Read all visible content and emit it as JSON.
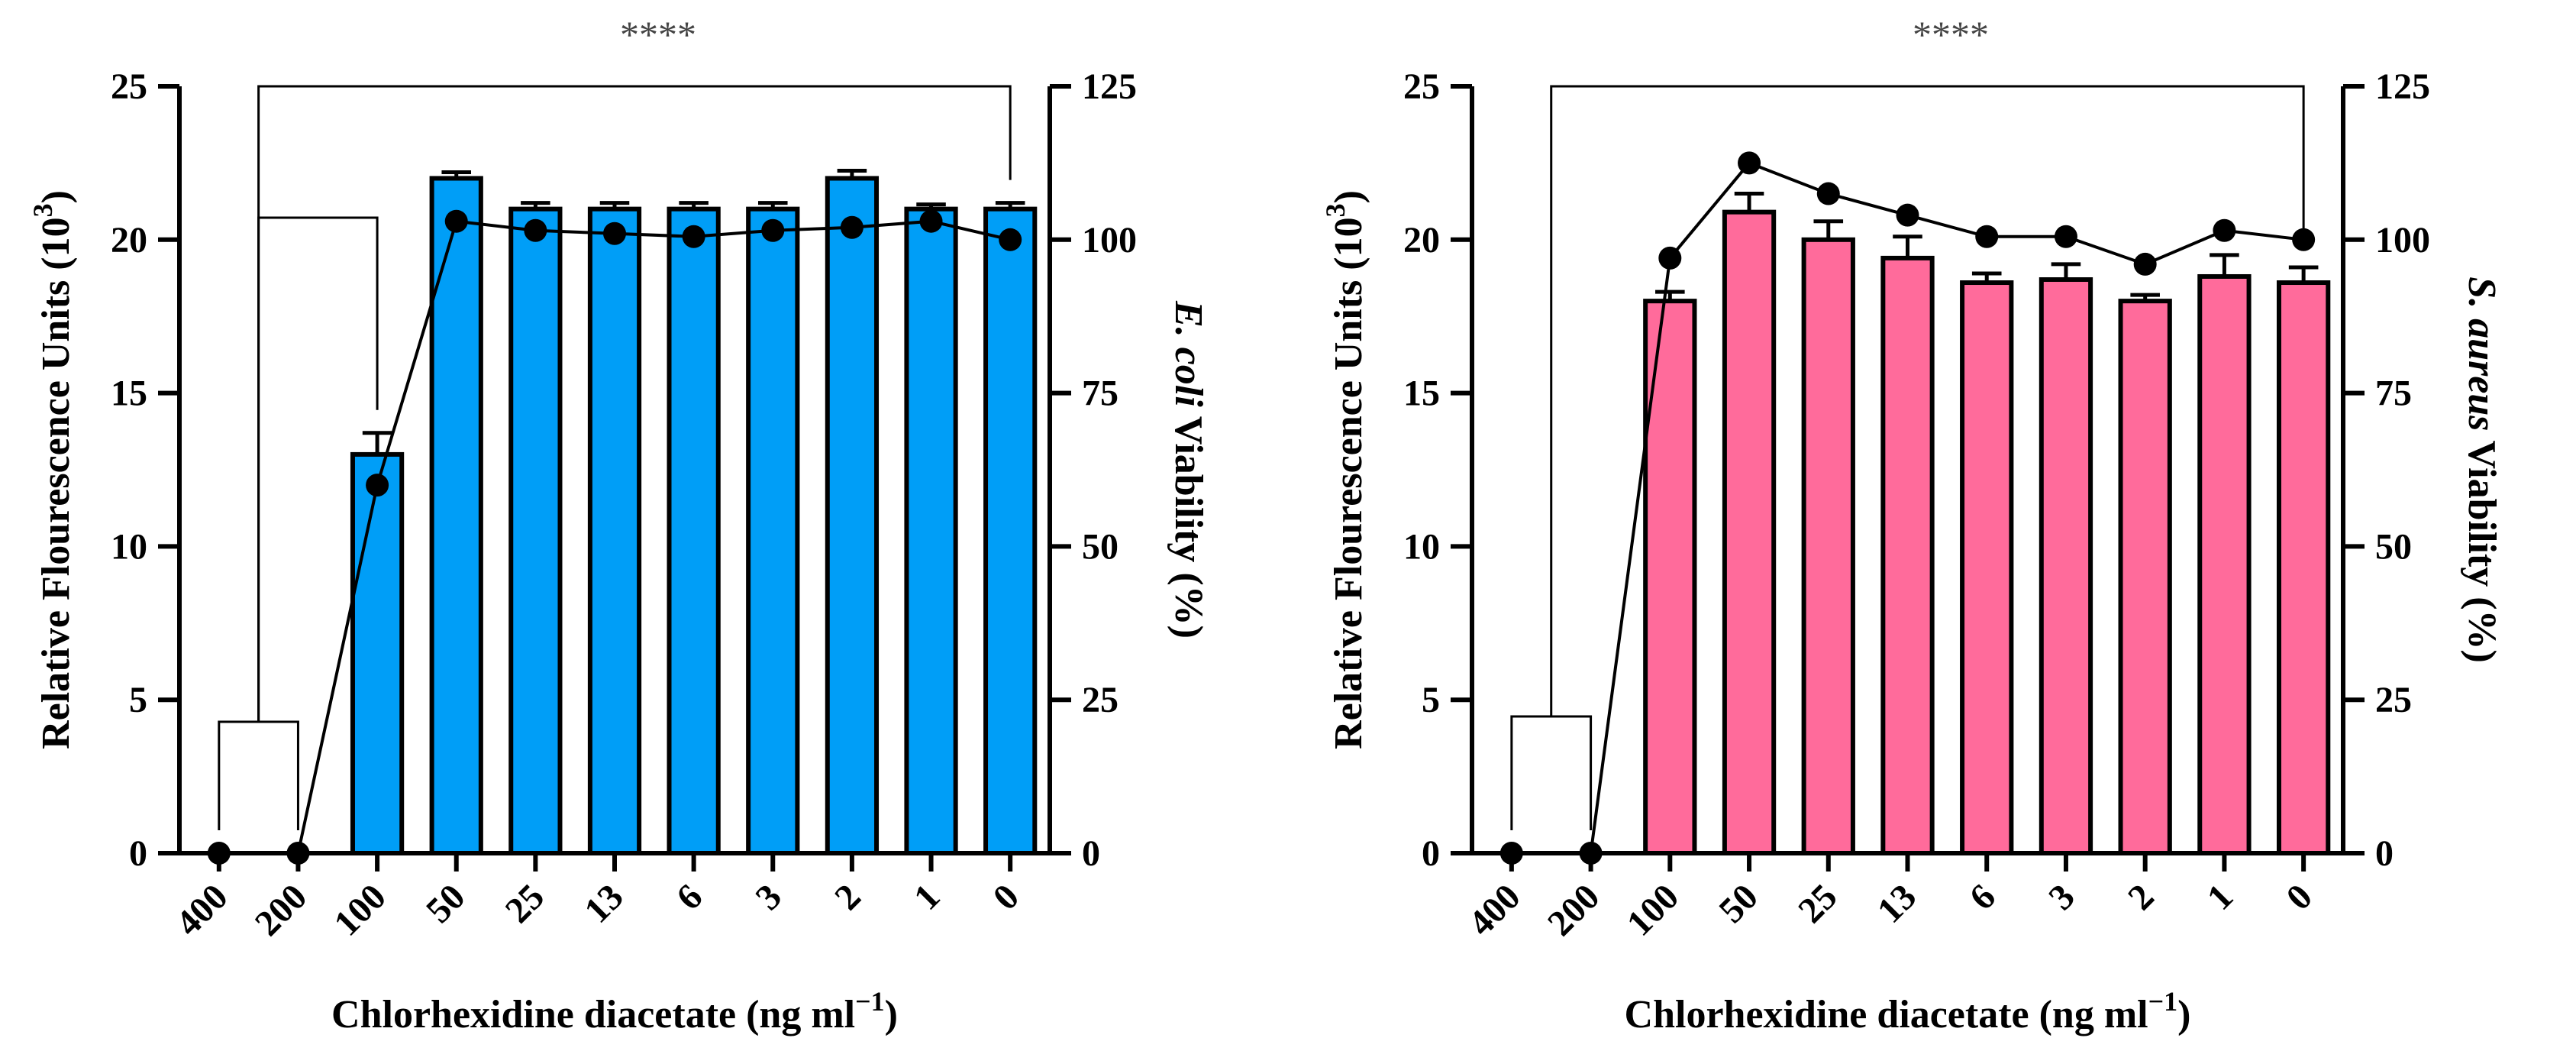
{
  "chart_data": [
    {
      "type": "bar",
      "categories": [
        "400",
        "200",
        "100",
        "50",
        "25",
        "13",
        "6",
        "3",
        "2",
        "1",
        "0"
      ],
      "xlabel": "Chlorhexidine diacetate (ng ml",
      "xlabel_sup": "−1",
      "xlabel_end": ")",
      "ylabel": "Relative Flourescence Units (10",
      "ylabel_sup": "3",
      "ylabel_end": ")",
      "ylim": [
        0,
        25
      ],
      "yticks": [
        0,
        5,
        10,
        15,
        20,
        25
      ],
      "y2label_italic": "E. coli",
      "y2label_rest": " Viability (%)",
      "y2lim": [
        0,
        125
      ],
      "y2ticks": [
        0,
        25,
        50,
        75,
        100,
        125
      ],
      "bar_color": "#009ef7",
      "series": [
        {
          "kind": "bar",
          "axis": "left",
          "values": [
            0,
            0,
            13.0,
            22.0,
            21.0,
            21.0,
            21.0,
            21.0,
            22.0,
            21.0,
            21.0
          ],
          "errors": [
            0,
            0,
            0.7,
            0.2,
            0.2,
            0.2,
            0.2,
            0.2,
            0.25,
            0.15,
            0.2
          ]
        },
        {
          "kind": "line",
          "axis": "right",
          "values": [
            0,
            0,
            60,
            103,
            101.5,
            101,
            100.5,
            101.5,
            102,
            103,
            100
          ]
        }
      ],
      "significance": "****"
    },
    {
      "type": "bar",
      "categories": [
        "400",
        "200",
        "100",
        "50",
        "25",
        "13",
        "6",
        "3",
        "2",
        "1",
        "0"
      ],
      "xlabel": "Chlorhexidine diacetate (ng ml",
      "xlabel_sup": "−1",
      "xlabel_end": ")",
      "ylabel": "Relative Flourescence Units (10",
      "ylabel_sup": "3",
      "ylabel_end": ")",
      "ylim": [
        0,
        25
      ],
      "yticks": [
        0,
        5,
        10,
        15,
        20,
        25
      ],
      "y2label_italic": "S. aureus",
      "y2label_rest": " Viability (%)",
      "y2lim": [
        0,
        125
      ],
      "y2ticks": [
        0,
        25,
        50,
        75,
        100,
        125
      ],
      "bar_color": "#ff6b9b",
      "series": [
        {
          "kind": "bar",
          "axis": "left",
          "values": [
            0,
            0,
            18.0,
            20.9,
            20.0,
            19.4,
            18.6,
            18.7,
            18.0,
            18.8,
            18.6
          ],
          "errors": [
            0,
            0,
            0.3,
            0.6,
            0.6,
            0.7,
            0.3,
            0.5,
            0.2,
            0.7,
            0.5
          ]
        },
        {
          "kind": "line",
          "axis": "right",
          "values": [
            0,
            0,
            97,
            112.5,
            107.5,
            104,
            100.5,
            100.5,
            96,
            101.5,
            100
          ]
        }
      ],
      "significance": "****"
    }
  ]
}
